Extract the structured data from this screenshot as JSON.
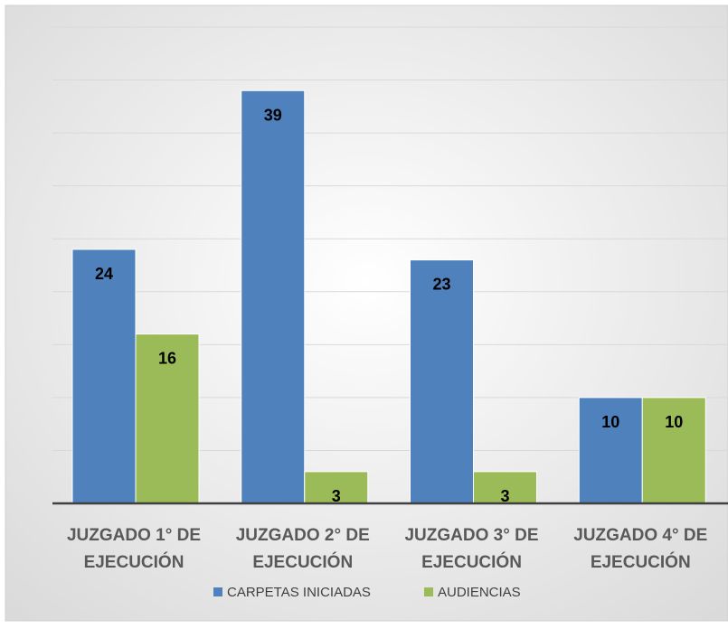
{
  "chart_data": {
    "type": "bar",
    "title": "",
    "xlabel": "",
    "ylabel": "",
    "ylim": [
      0,
      45
    ],
    "grid": true,
    "legend_position": "bottom",
    "categories": [
      [
        "JUZGADO 1° DE",
        "EJECUCIÓN"
      ],
      [
        "JUZGADO 2° DE",
        "EJECUCIÓN"
      ],
      [
        "JUZGADO 3° DE",
        "EJECUCIÓN"
      ],
      [
        "JUZGADO 4° DE",
        "EJECUCIÓN"
      ]
    ],
    "series": [
      {
        "name": "CARPETAS INICIADAS",
        "color": "#4F81BD",
        "values": [
          24,
          39,
          23,
          10
        ]
      },
      {
        "name": "AUDIENCIAS",
        "color": "#9BBB59",
        "values": [
          16,
          3,
          3,
          10
        ]
      }
    ]
  }
}
